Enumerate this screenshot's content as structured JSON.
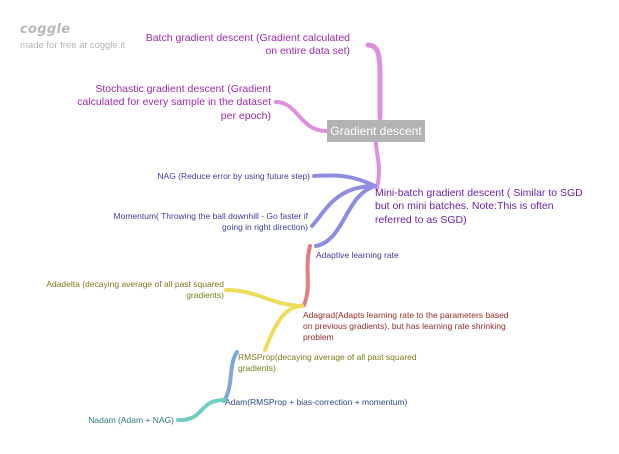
{
  "brand": {
    "logo": "coggle",
    "tagline": "made for free at coggle.it"
  },
  "root": "Gradient descent",
  "nodes": {
    "batch": "Batch gradient descent (Gradient calculated on entire data set)",
    "sgd": "Stochastic gradient descent (Gradient calculated for every sample in the dataset per epoch)",
    "minibatch": "Mini-batch gradient descent ( Similar to SGD but on mini batches. Note:This is often referred to as SGD)",
    "nag": "NAG (Reduce error by using future step)",
    "momentum": "Momentum( Throwing the ball downhill - Go faster if going in right direction)",
    "adaptive": "Adaptive learning rate",
    "adadelta": "Adadelta (decaying average of all past squared gradients)",
    "adagrad": "Adagrad(Adapts learning rate to the parameters based on previous gradients), but has learning rate shrinking problem",
    "rmsprop": "RMSProp(decaying average of all past squared gradients)",
    "adam": "Adam(RMSProp + bias-correction + momentum)",
    "nadam": "Nadam (Adam + NAG)"
  },
  "colors": {
    "pink": "#df8fe0",
    "indigo": "#8e8de2",
    "salmon": "#e07f7f",
    "yellow": "#ecdd5a",
    "blue": "#7ea6dd",
    "teal": "#6fcfc1",
    "root_bg": "#b3b3b3"
  }
}
